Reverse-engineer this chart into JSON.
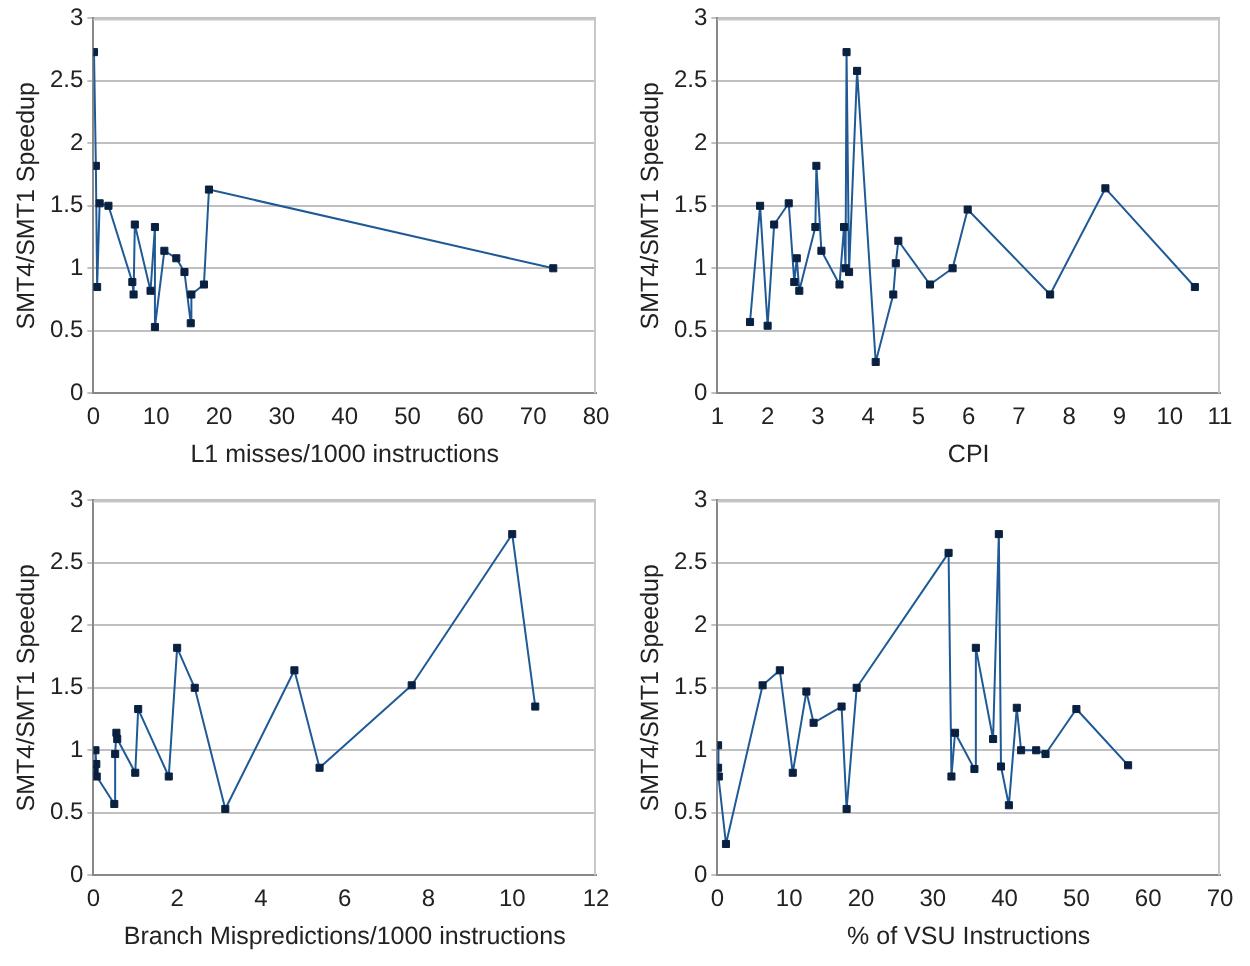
{
  "chart_data": [
    {
      "type": "line",
      "xlabel": "L1 misses/1000 instructions",
      "ylabel": "SMT4/SMT1 Speedup",
      "xlim": [
        0,
        80
      ],
      "xticks": [
        0,
        10,
        20,
        30,
        40,
        50,
        60,
        70,
        80
      ],
      "ylim": [
        0,
        3
      ],
      "yticks": [
        0,
        0.5,
        1,
        1.5,
        2,
        2.5,
        3
      ],
      "grid": "y",
      "legend": false,
      "marker": "square",
      "line_style": "solid",
      "series": [
        {
          "color": "#1f5a96",
          "x": [
            0.1,
            0.4,
            0.6,
            1.0,
            2.4,
            6.2,
            6.4,
            6.6,
            9.1,
            9.8,
            9.8,
            11.3,
            13.2,
            14.5,
            15.5,
            15.6,
            17.6,
            18.4,
            73.2
          ],
          "values": [
            2.73,
            1.82,
            0.85,
            1.52,
            1.5,
            0.89,
            0.79,
            1.35,
            0.82,
            1.33,
            0.53,
            1.14,
            1.08,
            0.97,
            0.56,
            0.79,
            0.87,
            1.63,
            1.0
          ]
        }
      ]
    },
    {
      "type": "line",
      "xlabel": "CPI",
      "ylabel": "SMT4/SMT1 Speedup",
      "xlim": [
        1,
        11
      ],
      "xticks": [
        1,
        2,
        3,
        4,
        5,
        6,
        7,
        8,
        9,
        10,
        11
      ],
      "ylim": [
        0,
        3
      ],
      "yticks": [
        0,
        0.5,
        1,
        1.5,
        2,
        2.5,
        3
      ],
      "grid": "y",
      "legend": false,
      "marker": "square",
      "line_style": "solid",
      "series": [
        {
          "color": "#1f5a96",
          "x": [
            1.65,
            1.85,
            2.0,
            2.13,
            2.42,
            2.53,
            2.58,
            2.63,
            2.95,
            2.97,
            3.07,
            3.43,
            3.52,
            3.55,
            3.57,
            3.62,
            3.78,
            4.15,
            4.5,
            4.55,
            4.6,
            5.23,
            5.68,
            5.98,
            7.62,
            8.72,
            10.5
          ],
          "values": [
            0.57,
            1.5,
            0.54,
            1.35,
            1.52,
            0.89,
            1.08,
            0.82,
            1.33,
            1.82,
            1.14,
            0.87,
            1.33,
            1.0,
            2.73,
            0.97,
            2.58,
            0.25,
            0.79,
            1.04,
            1.22,
            0.87,
            1.0,
            1.47,
            0.79,
            1.64,
            0.85
          ]
        }
      ]
    },
    {
      "type": "line",
      "xlabel": "Branch Mispredictions/1000 instructions",
      "ylabel": "SMT4/SMT1 Speedup",
      "xlim": [
        0,
        12
      ],
      "xticks": [
        0,
        2,
        4,
        6,
        8,
        10,
        12
      ],
      "ylim": [
        0,
        3
      ],
      "yticks": [
        0,
        0.5,
        1,
        1.5,
        2,
        2.5,
        3
      ],
      "grid": "y",
      "legend": false,
      "marker": "square",
      "line_style": "solid",
      "series": [
        {
          "color": "#1f5a96",
          "x": [
            0.03,
            0.05,
            0.07,
            0.08,
            0.5,
            0.52,
            0.55,
            0.57,
            1.0,
            1.07,
            1.8,
            2.0,
            2.42,
            3.15,
            4.8,
            5.4,
            7.6,
            10.0,
            10.55
          ],
          "values": [
            0.85,
            1.0,
            0.89,
            0.79,
            0.57,
            0.97,
            1.14,
            1.09,
            0.82,
            1.33,
            0.79,
            1.82,
            1.5,
            0.53,
            1.64,
            0.86,
            1.52,
            2.73,
            1.35
          ]
        }
      ]
    },
    {
      "type": "line",
      "xlabel": "% of VSU Instructions",
      "ylabel": "SMT4/SMT1 Speedup",
      "xlim": [
        0,
        70
      ],
      "xticks": [
        0,
        10,
        20,
        30,
        40,
        50,
        60,
        70
      ],
      "ylim": [
        0,
        3
      ],
      "yticks": [
        0,
        0.5,
        1,
        1.5,
        2,
        2.5,
        3
      ],
      "grid": "y",
      "legend": false,
      "marker": "square",
      "line_style": "solid",
      "series": [
        {
          "color": "#1f5a96",
          "x": [
            0.1,
            0.1,
            0.2,
            1.2,
            6.3,
            8.7,
            10.5,
            12.4,
            13.4,
            17.3,
            18.0,
            19.4,
            32.2,
            32.6,
            33.1,
            35.8,
            36.0,
            38.4,
            39.2,
            39.5,
            40.6,
            41.7,
            42.3,
            44.4,
            45.7,
            50,
            57.2
          ],
          "values": [
            0.86,
            1.04,
            0.79,
            0.25,
            1.52,
            1.64,
            0.82,
            1.47,
            1.22,
            1.35,
            0.53,
            1.5,
            2.58,
            0.79,
            1.14,
            0.85,
            1.82,
            1.09,
            2.73,
            0.87,
            0.56,
            1.34,
            1.0,
            1.0,
            0.97,
            1.33,
            0.88
          ]
        }
      ]
    }
  ]
}
